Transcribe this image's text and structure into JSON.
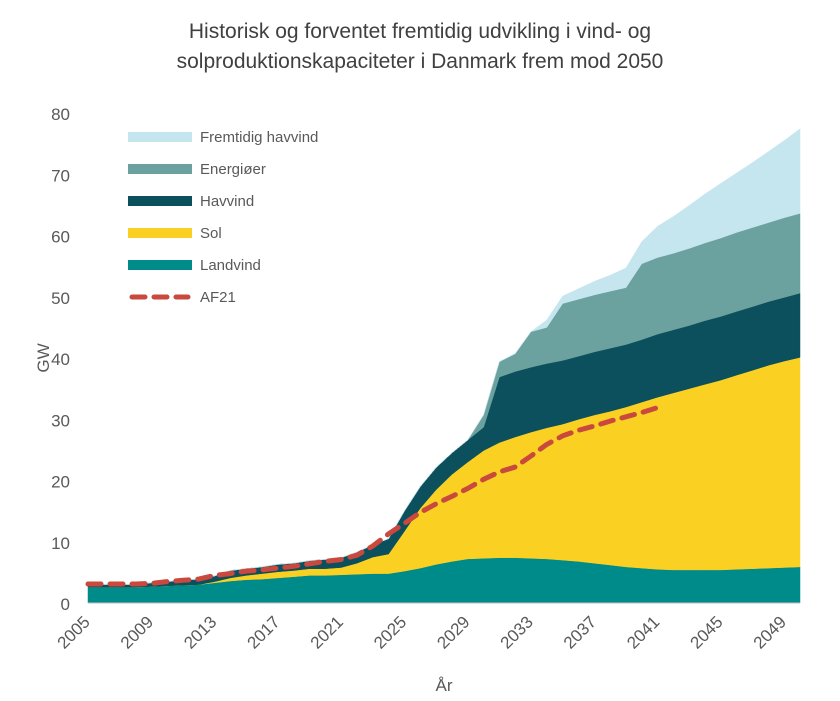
{
  "chart_data": {
    "type": "area",
    "title_lines": [
      "Historisk og forventet fremtidig udvikling i vind- og",
      "solproduktionskapaciteter i Danmark frem mod 2050"
    ],
    "xlabel": "År",
    "ylabel": "GW",
    "ylim": [
      0,
      80
    ],
    "yticks": [
      0,
      10,
      20,
      30,
      40,
      50,
      60,
      70,
      80
    ],
    "xlim": [
      2005,
      2050
    ],
    "xticks": [
      "2005",
      "2009",
      "2013",
      "2017",
      "2021",
      "2025",
      "2029",
      "2033",
      "2037",
      "2041",
      "2045",
      "2049"
    ],
    "grid": false,
    "legend_position": "top-left",
    "x": [
      2005,
      2006,
      2007,
      2008,
      2009,
      2010,
      2011,
      2012,
      2013,
      2014,
      2015,
      2016,
      2017,
      2018,
      2019,
      2020,
      2021,
      2022,
      2023,
      2024,
      2025,
      2026,
      2027,
      2028,
      2029,
      2030,
      2031,
      2032,
      2033,
      2034,
      2035,
      2036,
      2037,
      2038,
      2039,
      2040,
      2041,
      2042,
      2043,
      2044,
      2045,
      2046,
      2047,
      2048,
      2049,
      2050
    ],
    "series": [
      {
        "name": "Landvind",
        "color": "#008b8b",
        "values": [
          2.6,
          2.6,
          2.6,
          2.6,
          2.7,
          2.8,
          2.9,
          3.0,
          3.3,
          3.6,
          3.8,
          3.9,
          4.1,
          4.3,
          4.5,
          4.5,
          4.6,
          4.7,
          4.8,
          4.8,
          5.2,
          5.7,
          6.3,
          6.8,
          7.2,
          7.3,
          7.4,
          7.4,
          7.3,
          7.2,
          7.0,
          6.8,
          6.5,
          6.2,
          5.9,
          5.7,
          5.5,
          5.4,
          5.4,
          5.4,
          5.4,
          5.5,
          5.6,
          5.7,
          5.8,
          5.9
        ]
      },
      {
        "name": "Sol",
        "color": "#fad122",
        "values": [
          0,
          0,
          0,
          0,
          0,
          0,
          0,
          0,
          0.2,
          0.5,
          0.7,
          0.9,
          1.0,
          1.0,
          1.1,
          1.1,
          1.2,
          1.8,
          2.7,
          3.2,
          6.5,
          9.8,
          12.2,
          14.2,
          15.8,
          17.6,
          18.8,
          19.7,
          20.6,
          21.4,
          22.2,
          23.2,
          24.2,
          25.1,
          26.1,
          27.1,
          28.1,
          28.9,
          29.6,
          30.3,
          31.0,
          31.7,
          32.4,
          33.1,
          33.7,
          34.2
        ]
      },
      {
        "name": "Havvind",
        "color": "#0c4f5d",
        "values": [
          0.4,
          0.4,
          0.4,
          0.4,
          0.6,
          0.7,
          0.8,
          0.9,
          0.9,
          1.2,
          1.1,
          1.1,
          1.2,
          1.2,
          1.3,
          1.5,
          1.6,
          1.8,
          2.0,
          2.5,
          3.3,
          3.5,
          3.6,
          3.5,
          3.6,
          3.8,
          10.7,
          10.7,
          10.6,
          10.5,
          10.4,
          10.3,
          10.3,
          10.3,
          10.2,
          10.2,
          10.3,
          10.3,
          10.3,
          10.4,
          10.4,
          10.4,
          10.4,
          10.4,
          10.4,
          10.5
        ]
      },
      {
        "name": "Energiøer",
        "color": "#6ba19f",
        "values": [
          0,
          0,
          0,
          0,
          0,
          0,
          0,
          0,
          0,
          0,
          0,
          0,
          0,
          0,
          0,
          0,
          0,
          0,
          0,
          0,
          0,
          0,
          0,
          0,
          0,
          2.0,
          2.5,
          2.9,
          5.8,
          5.9,
          9.3,
          9.3,
          9.3,
          9.3,
          9.3,
          12.4,
          12.5,
          12.5,
          12.6,
          12.7,
          12.8,
          12.9,
          12.9,
          12.9,
          13.0,
          13.0
        ]
      },
      {
        "name": "Fremtidig havvind",
        "color": "#c5e5ef",
        "values": [
          0,
          0,
          0,
          0,
          0,
          0,
          0,
          0,
          0,
          0,
          0,
          0,
          0,
          0,
          0,
          0,
          0,
          0,
          0,
          0,
          0,
          0,
          0,
          0,
          0,
          0,
          0,
          0,
          0,
          1.2,
          1.2,
          1.7,
          2.2,
          2.6,
          3.2,
          3.6,
          5.1,
          6.0,
          7.0,
          8.0,
          8.9,
          9.7,
          10.6,
          11.6,
          12.6,
          13.8
        ]
      }
    ],
    "line_series": {
      "name": "AF21",
      "color": "#c9493e",
      "x": [
        2005,
        2006,
        2007,
        2008,
        2009,
        2010,
        2011,
        2012,
        2013,
        2014,
        2015,
        2016,
        2017,
        2018,
        2019,
        2020,
        2021,
        2022,
        2023,
        2024,
        2025,
        2026,
        2027,
        2028,
        2029,
        2030,
        2031,
        2032,
        2033,
        2034,
        2035,
        2036,
        2037,
        2038,
        2039,
        2040,
        2041
      ],
      "values": [
        3.1,
        3.1,
        3.1,
        3.1,
        3.2,
        3.5,
        3.7,
        3.9,
        4.5,
        4.8,
        5.2,
        5.4,
        5.7,
        6.0,
        6.4,
        6.8,
        7.1,
        7.8,
        9.3,
        11.3,
        13.0,
        14.8,
        16.2,
        17.4,
        18.7,
        20.2,
        21.4,
        22.2,
        24.0,
        25.9,
        27.3,
        28.2,
        28.9,
        29.7,
        30.4,
        31.1,
        31.9
      ]
    },
    "legend_entries": [
      {
        "name": "Fremtidig havvind",
        "color": "#c5e5ef",
        "style": "swatch"
      },
      {
        "name": "Energiøer",
        "color": "#6ba19f",
        "style": "swatch"
      },
      {
        "name": "Havvind",
        "color": "#0c4f5d",
        "style": "swatch"
      },
      {
        "name": "Sol",
        "color": "#fad122",
        "style": "swatch"
      },
      {
        "name": "Landvind",
        "color": "#008b8b",
        "style": "swatch"
      },
      {
        "name": "AF21",
        "color": "#c9493e",
        "style": "dashed-line"
      }
    ]
  }
}
